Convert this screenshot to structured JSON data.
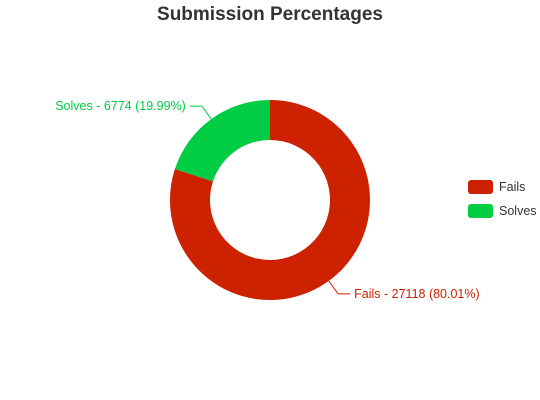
{
  "chart_data": {
    "type": "pie",
    "variant": "donut",
    "title": "Submission Percentages",
    "series": [
      {
        "name": "Fails",
        "value": 27118,
        "percent": 80.01,
        "color": "#cc2200",
        "callout": "Fails - 27118 (80.01%)"
      },
      {
        "name": "Solves",
        "value": 6774,
        "percent": 19.99,
        "color": "#00cc44",
        "callout": "Solves - 6774 (19.99%)"
      }
    ],
    "legend": {
      "position": "right",
      "items": [
        "Fails",
        "Solves"
      ]
    }
  }
}
